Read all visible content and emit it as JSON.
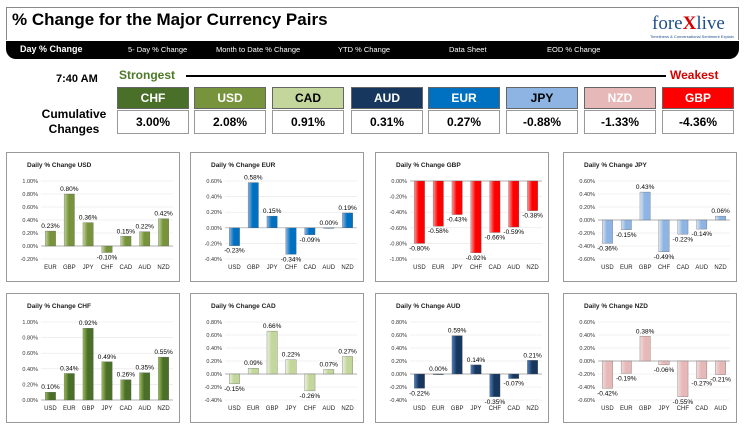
{
  "header": {
    "title": "% Change for the Major Currency Pairs",
    "logo_pre": "fore",
    "logo_x": "X",
    "logo_post": "live",
    "logo_tagline": "Timeliness & Conversational Sentiment Explain"
  },
  "nav": {
    "tabs": [
      "Day % Change",
      "5- Day % Change",
      "Month to Date % Change",
      "YTD % Change",
      "Data Sheet",
      "EOD % Change"
    ],
    "active": "Day % Change"
  },
  "summary": {
    "time": "7:40 AM",
    "strongest_label": "Strongest",
    "weakest_label": "Weakest",
    "cumulative_label_1": "Cumulative",
    "cumulative_label_2": "Changes",
    "currencies": [
      {
        "code": "CHF",
        "value": "3.00%",
        "color": "#4a6f28"
      },
      {
        "code": "USD",
        "value": "2.08%",
        "color": "#77933c"
      },
      {
        "code": "CAD",
        "value": "0.91%",
        "color": "#c3d69b"
      },
      {
        "code": "AUD",
        "value": "0.31%",
        "color": "#17375e"
      },
      {
        "code": "EUR",
        "value": "0.27%",
        "color": "#0070c0"
      },
      {
        "code": "JPY",
        "value": "-0.88%",
        "color": "#8db4e2"
      },
      {
        "code": "NZD",
        "value": "-1.33%",
        "color": "#e6b9b8"
      },
      {
        "code": "GBP",
        "value": "-4.36%",
        "color": "#ff0000"
      }
    ]
  },
  "chart_data": [
    {
      "type": "bar",
      "title": "Daily % Change USD",
      "categories": [
        "EUR",
        "GBP",
        "JPY",
        "CHF",
        "CAD",
        "AUD",
        "NZD"
      ],
      "values": [
        0.23,
        0.8,
        0.36,
        -0.1,
        0.15,
        0.22,
        0.42
      ],
      "labels": [
        "0.23%",
        "0.80%",
        "0.36%",
        "-0.10%",
        "0.15%",
        "0.22%",
        "0.42%"
      ],
      "ylim": [
        -0.2,
        1.0
      ],
      "yticks": [
        -0.2,
        0.0,
        0.2,
        0.4,
        0.6,
        0.8,
        1.0
      ],
      "color": "#77933c",
      "color_light": "#c3d69b"
    },
    {
      "type": "bar",
      "title": "Daily % Change EUR",
      "categories": [
        "USD",
        "GBP",
        "JPY",
        "CHF",
        "CAD",
        "AUD",
        "NZD"
      ],
      "values": [
        -0.23,
        0.58,
        0.15,
        -0.34,
        -0.09,
        0.0,
        0.19
      ],
      "labels": [
        "-0.23%",
        "0.58%",
        "0.15%",
        "-0.34%",
        "-0.09%",
        "0.00%",
        "0.19%"
      ],
      "ylim": [
        -0.4,
        0.6
      ],
      "yticks": [
        -0.4,
        -0.2,
        0.0,
        0.2,
        0.4,
        0.6
      ],
      "color": "#0070c0",
      "color_light": "#8db4e2"
    },
    {
      "type": "bar",
      "title": "Daily % Change GBP",
      "categories": [
        "USD",
        "EUR",
        "JPY",
        "CHF",
        "CAD",
        "AUD",
        "NZD"
      ],
      "values": [
        -0.8,
        -0.58,
        -0.43,
        -0.92,
        -0.66,
        -0.59,
        -0.38
      ],
      "labels": [
        "-0.80%",
        "-0.58%",
        "-0.43%",
        "-0.92%",
        "-0.66%",
        "-0.59%",
        "-0.38%"
      ],
      "ylim": [
        -1.0,
        0.0
      ],
      "yticks": [
        -1.0,
        -0.8,
        -0.6,
        -0.4,
        -0.2,
        0.0
      ],
      "color": "#ff0000",
      "color_light": "#ff9999"
    },
    {
      "type": "bar",
      "title": "Daily % Change JPY",
      "categories": [
        "USD",
        "EUR",
        "GBP",
        "CHF",
        "CAD",
        "AUD",
        "NZD"
      ],
      "values": [
        -0.36,
        -0.15,
        0.43,
        -0.49,
        -0.22,
        -0.14,
        0.06
      ],
      "labels": [
        "-0.36%",
        "-0.15%",
        "0.43%",
        "-0.49%",
        "-0.22%",
        "-0.14%",
        "0.06%"
      ],
      "ylim": [
        -0.6,
        0.6
      ],
      "yticks": [
        -0.6,
        -0.4,
        -0.2,
        0.0,
        0.2,
        0.4,
        0.6
      ],
      "color": "#8db4e2",
      "color_light": "#dce6f2"
    },
    {
      "type": "bar",
      "title": "Daily % Change CHF",
      "categories": [
        "USD",
        "EUR",
        "GBP",
        "JPY",
        "CAD",
        "AUD",
        "NZD"
      ],
      "values": [
        0.1,
        0.34,
        0.92,
        0.49,
        0.26,
        0.35,
        0.55
      ],
      "labels": [
        "0.10%",
        "0.34%",
        "0.92%",
        "0.49%",
        "0.26%",
        "0.35%",
        "0.55%"
      ],
      "ylim": [
        0.0,
        1.0
      ],
      "yticks": [
        0.0,
        0.2,
        0.4,
        0.6,
        0.8,
        1.0
      ],
      "color": "#4a6f28",
      "color_light": "#9bbb59"
    },
    {
      "type": "bar",
      "title": "Daily % Change CAD",
      "categories": [
        "USD",
        "EUR",
        "GBP",
        "JPY",
        "CHF",
        "AUD",
        "NZD"
      ],
      "values": [
        -0.15,
        0.09,
        0.66,
        0.22,
        -0.26,
        0.07,
        0.27
      ],
      "labels": [
        "-0.15%",
        "0.09%",
        "0.66%",
        "0.22%",
        "-0.26%",
        "0.07%",
        "0.27%"
      ],
      "ylim": [
        -0.4,
        0.8
      ],
      "yticks": [
        -0.4,
        -0.2,
        0.0,
        0.2,
        0.4,
        0.6,
        0.8
      ],
      "color": "#c3d69b",
      "color_light": "#ebf1de"
    },
    {
      "type": "bar",
      "title": "Daily % Change AUD",
      "categories": [
        "USD",
        "EUR",
        "GBP",
        "JPY",
        "CHF",
        "CAD",
        "NZD"
      ],
      "values": [
        -0.22,
        0.0,
        0.59,
        0.14,
        -0.35,
        -0.07,
        0.21
      ],
      "labels": [
        "-0.22%",
        "0.00%",
        "0.59%",
        "0.14%",
        "-0.35%",
        "-0.07%",
        "0.21%"
      ],
      "ylim": [
        -0.4,
        0.8
      ],
      "yticks": [
        -0.4,
        -0.2,
        0.0,
        0.2,
        0.4,
        0.6,
        0.8
      ],
      "color": "#17375e",
      "color_light": "#4f81bd"
    },
    {
      "type": "bar",
      "title": "Daily % Change NZD",
      "categories": [
        "USD",
        "EUR",
        "GBP",
        "JPY",
        "CHF",
        "CAD",
        "AUD"
      ],
      "values": [
        -0.42,
        -0.19,
        0.38,
        -0.06,
        -0.55,
        -0.27,
        -0.21
      ],
      "labels": [
        "-0.42%",
        "-0.19%",
        "0.38%",
        "-0.06%",
        "-0.55%",
        "-0.27%",
        "-0.21%"
      ],
      "ylim": [
        -0.6,
        0.6
      ],
      "yticks": [
        -0.6,
        -0.4,
        -0.2,
        0.0,
        0.2,
        0.4,
        0.6
      ],
      "color": "#e6b9b8",
      "color_light": "#f2dcdb"
    }
  ]
}
